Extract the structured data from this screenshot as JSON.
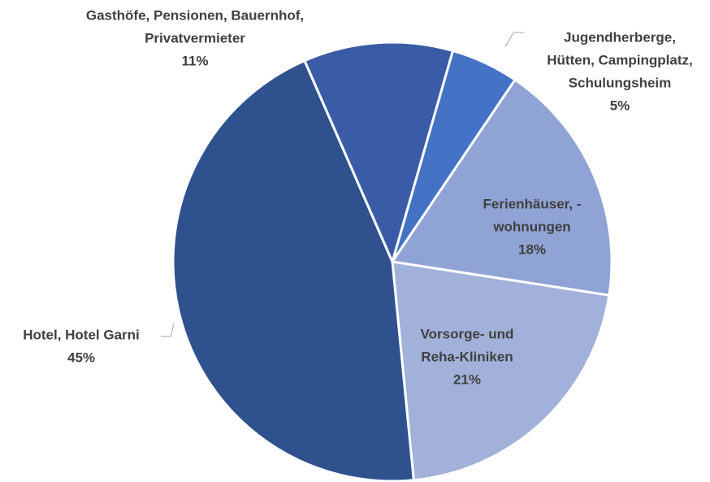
{
  "chart_data": {
    "type": "pie",
    "categories": [
      [
        "Jugendherberge,",
        "Hütten, Campingplatz,",
        "Schulungsheim"
      ],
      [
        "Ferienhäuser, -",
        "wohnungen"
      ],
      [
        "Vorsorge- und",
        "Reha-Kliniken"
      ],
      [
        "Hotel, Hotel Garni"
      ],
      [
        "Gasthöfe, Pensionen, Bauernhof,",
        "Privatvermieter"
      ]
    ],
    "values": [
      5,
      18,
      21,
      45,
      11
    ],
    "value_labels": [
      "5%",
      "18%",
      "21%",
      "45%",
      "11%"
    ],
    "colors": [
      "#4472c4",
      "#8fa3d5",
      "#a1b1da",
      "#2f528f",
      "#3a5ca6"
    ]
  }
}
